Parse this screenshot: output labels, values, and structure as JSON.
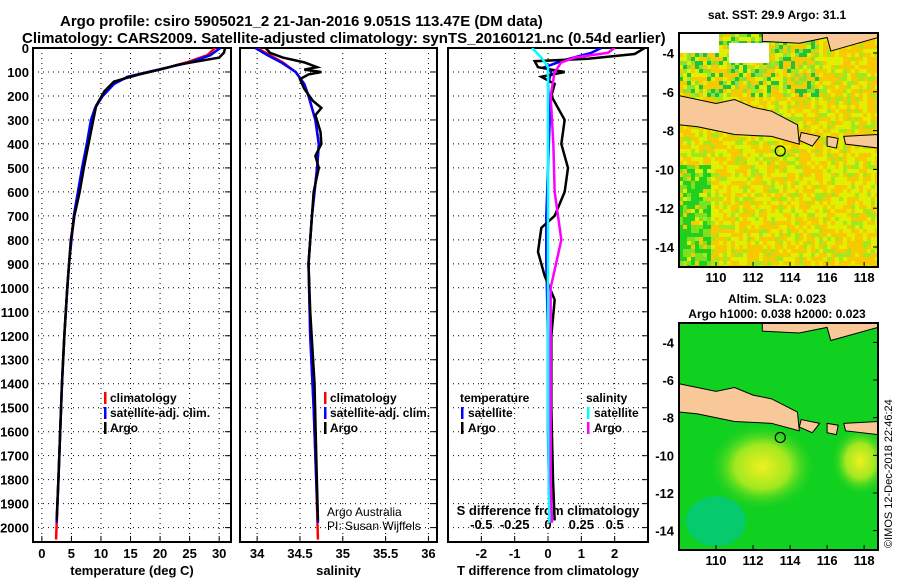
{
  "title_line1": "Argo profile: csiro 5905021_2 21-Jan-2016 9.051S 113.47E (DM data)",
  "title_line2": "Climatology: CARS2009. Satellite-adjusted climatology: synTS_20160121.nc (0.54d earlier)",
  "credit": "©IMOS 12-Dec-2018 22:46:24",
  "colors": {
    "climatology": "#ff0000",
    "satellite": "#0000ff",
    "argo": "#000000",
    "s_satellite": "#00ffff",
    "s_argo": "#ff00ff"
  },
  "chart_data": [
    {
      "type": "line",
      "name": "temperature",
      "xlabel": "temperature (deg C)",
      "ylabel": "depth",
      "xlim": [
        -1.5,
        32
      ],
      "ylim": [
        2060,
        0
      ],
      "xticks": [
        0,
        5,
        10,
        15,
        20,
        25,
        30
      ],
      "yticks": [
        0,
        100,
        200,
        300,
        400,
        500,
        600,
        700,
        800,
        900,
        1000,
        1100,
        1200,
        1300,
        1400,
        1500,
        1600,
        1700,
        1800,
        1900,
        2000
      ],
      "legend": [
        "climatology",
        "satellite-adj. clim.",
        "Argo"
      ],
      "series": [
        {
          "name": "climatology",
          "color": "#ff0000",
          "points": [
            [
              0,
              29.3
            ],
            [
              30,
              28
            ],
            [
              60,
              24.5
            ],
            [
              80,
              21.5
            ],
            [
              100,
              18
            ],
            [
              120,
              14.5
            ],
            [
              150,
              12
            ],
            [
              200,
              10.2
            ],
            [
              250,
              9
            ],
            [
              300,
              8.4
            ],
            [
              400,
              7.7
            ],
            [
              500,
              6.9
            ],
            [
              600,
              6.2
            ],
            [
              700,
              5.5
            ],
            [
              800,
              5
            ],
            [
              900,
              4.6
            ],
            [
              1000,
              4.3
            ],
            [
              1200,
              3.8
            ],
            [
              1400,
              3.4
            ],
            [
              1600,
              3.1
            ],
            [
              1800,
              2.8
            ],
            [
              2050,
              2.4
            ]
          ]
        },
        {
          "name": "satellite-adj. clim.",
          "color": "#0000ff",
          "points": [
            [
              0,
              30.2
            ],
            [
              30,
              28.5
            ],
            [
              60,
              25
            ],
            [
              80,
              21.5
            ],
            [
              100,
              18
            ],
            [
              120,
              14.5
            ],
            [
              150,
              12.2
            ],
            [
              200,
              10.3
            ],
            [
              250,
              9
            ],
            [
              300,
              8.3
            ],
            [
              400,
              7.6
            ],
            [
              500,
              6.8
            ],
            [
              600,
              6.1
            ],
            [
              700,
              5.4
            ],
            [
              800,
              5
            ],
            [
              900,
              4.6
            ],
            [
              1000,
              4.3
            ],
            [
              1200,
              3.8
            ],
            [
              1400,
              3.4
            ],
            [
              1600,
              3.1
            ],
            [
              1800,
              2.8
            ],
            [
              1980,
              2.5
            ]
          ]
        },
        {
          "name": "Argo",
          "color": "#000000",
          "points": [
            [
              0,
              31
            ],
            [
              20,
              30.8
            ],
            [
              40,
              30
            ],
            [
              55,
              26.5
            ],
            [
              70,
              23
            ],
            [
              90,
              20
            ],
            [
              110,
              16.5
            ],
            [
              140,
              12.2
            ],
            [
              180,
              10.6
            ],
            [
              240,
              9.2
            ],
            [
              300,
              8.7
            ],
            [
              400,
              7.9
            ],
            [
              500,
              7.1
            ],
            [
              600,
              6.4
            ],
            [
              700,
              5.5
            ],
            [
              800,
              4.9
            ],
            [
              900,
              4.6
            ],
            [
              1000,
              4.3
            ],
            [
              1200,
              3.8
            ],
            [
              1400,
              3.4
            ],
            [
              1600,
              3.1
            ],
            [
              1800,
              2.8
            ],
            [
              1970,
              2.5
            ]
          ]
        }
      ]
    },
    {
      "type": "line",
      "name": "salinity",
      "xlabel": "salinity",
      "xlim": [
        33.8,
        36.1
      ],
      "ylim": [
        2060,
        0
      ],
      "xticks": [
        34,
        34.5,
        35,
        35.5,
        36
      ],
      "xtick_labels": [
        "34",
        "34.5",
        "35",
        "35.5",
        "36"
      ],
      "legend": [
        "climatology",
        "satellite-adj. clim.",
        "Argo"
      ],
      "annotation": [
        "Argo Australia",
        "PI: Susan Wijffels"
      ],
      "series": [
        {
          "name": "climatology",
          "color": "#ff0000",
          "points": [
            [
              0,
              34.0
            ],
            [
              30,
              34.15
            ],
            [
              60,
              34.3
            ],
            [
              100,
              34.45
            ],
            [
              150,
              34.55
            ],
            [
              200,
              34.6
            ],
            [
              300,
              34.68
            ],
            [
              400,
              34.72
            ],
            [
              500,
              34.7
            ],
            [
              700,
              34.64
            ],
            [
              900,
              34.6
            ],
            [
              1200,
              34.62
            ],
            [
              1500,
              34.66
            ],
            [
              1800,
              34.69
            ],
            [
              2050,
              34.71
            ]
          ]
        },
        {
          "name": "satellite-adj. clim.",
          "color": "#0000ff",
          "points": [
            [
              0,
              33.98
            ],
            [
              30,
              34.12
            ],
            [
              60,
              34.28
            ],
            [
              100,
              34.45
            ],
            [
              150,
              34.55
            ],
            [
              200,
              34.6
            ],
            [
              300,
              34.68
            ],
            [
              400,
              34.72
            ],
            [
              500,
              34.7
            ],
            [
              700,
              34.64
            ],
            [
              900,
              34.6
            ],
            [
              1200,
              34.62
            ],
            [
              1500,
              34.66
            ],
            [
              1800,
              34.69
            ],
            [
              1980,
              34.71
            ]
          ]
        },
        {
          "name": "Argo",
          "color": "#000000",
          "points": [
            [
              0,
              34.1
            ],
            [
              20,
              34.15
            ],
            [
              40,
              34.3
            ],
            [
              60,
              34.55
            ],
            [
              80,
              34.7
            ],
            [
              90,
              34.55
            ],
            [
              100,
              34.75
            ],
            [
              110,
              34.6
            ],
            [
              130,
              34.5
            ],
            [
              170,
              34.55
            ],
            [
              220,
              34.65
            ],
            [
              250,
              34.75
            ],
            [
              280,
              34.68
            ],
            [
              350,
              34.74
            ],
            [
              400,
              34.75
            ],
            [
              450,
              34.68
            ],
            [
              500,
              34.72
            ],
            [
              600,
              34.66
            ],
            [
              700,
              34.64
            ],
            [
              800,
              34.62
            ],
            [
              900,
              34.6
            ],
            [
              1100,
              34.62
            ],
            [
              1400,
              34.67
            ],
            [
              1700,
              34.69
            ],
            [
              1970,
              34.71
            ]
          ]
        }
      ]
    },
    {
      "type": "line",
      "name": "difference",
      "xlabel": "T difference from climatology",
      "x2label": "S difference from climatology",
      "xlim": [
        -3,
        3
      ],
      "ylim": [
        2060,
        0
      ],
      "xticks": [
        -2,
        -1,
        0,
        1,
        2
      ],
      "x2ticks": [
        -0.5,
        -0.25,
        0,
        0.25,
        0.5
      ],
      "x2tick_labels": [
        "-0.5",
        "-0.25",
        "0",
        "0.25",
        "0.5"
      ],
      "legend_t": {
        "title": "temperature",
        "items": [
          "satellite",
          "Argo"
        ]
      },
      "legend_s": {
        "title": "salinity",
        "items": [
          "satellite",
          "Argo"
        ]
      },
      "series": [
        {
          "name": "T satellite",
          "color": "#0000ff",
          "points": [
            [
              0,
              1.6
            ],
            [
              20,
              1.3
            ],
            [
              50,
              0.5
            ],
            [
              80,
              -0.1
            ],
            [
              100,
              0.1
            ],
            [
              150,
              0
            ],
            [
              300,
              0.05
            ],
            [
              500,
              0
            ],
            [
              700,
              -0.05
            ],
            [
              900,
              -0.05
            ],
            [
              1200,
              0
            ],
            [
              1600,
              0
            ],
            [
              1980,
              0.05
            ]
          ]
        },
        {
          "name": "T Argo",
          "color": "#000000",
          "points": [
            [
              0,
              2.9
            ],
            [
              25,
              2.6
            ],
            [
              45,
              1.2
            ],
            [
              55,
              -0.4
            ],
            [
              80,
              -0.3
            ],
            [
              100,
              0.5
            ],
            [
              120,
              -0.2
            ],
            [
              150,
              0.2
            ],
            [
              200,
              0.1
            ],
            [
              300,
              0.5
            ],
            [
              400,
              0.4
            ],
            [
              500,
              0.6
            ],
            [
              600,
              0.5
            ],
            [
              700,
              0.2
            ],
            [
              750,
              -0.2
            ],
            [
              850,
              -0.3
            ],
            [
              950,
              -0.1
            ],
            [
              1050,
              0.2
            ],
            [
              1200,
              0.1
            ],
            [
              1500,
              0.1
            ],
            [
              1800,
              0.15
            ],
            [
              1970,
              0.2
            ]
          ]
        },
        {
          "name": "S satellite",
          "color": "#00ffff",
          "points": [
            [
              0,
              -0.12
            ],
            [
              40,
              -0.05
            ],
            [
              80,
              0
            ],
            [
              300,
              0
            ],
            [
              800,
              0
            ],
            [
              1500,
              0
            ],
            [
              1980,
              0.01
            ]
          ]
        },
        {
          "name": "S Argo",
          "color": "#ff00ff",
          "points": [
            [
              0,
              0.5
            ],
            [
              20,
              0.45
            ],
            [
              40,
              0.2
            ],
            [
              60,
              0.1
            ],
            [
              100,
              0.05
            ],
            [
              200,
              0.02
            ],
            [
              400,
              0.04
            ],
            [
              600,
              0.05
            ],
            [
              800,
              0.1
            ],
            [
              1000,
              0.02
            ],
            [
              1400,
              0.02
            ],
            [
              1800,
              0.02
            ],
            [
              1980,
              0.03
            ]
          ]
        }
      ]
    }
  ],
  "map_sst": {
    "title": "sat. SST: 29.9 Argo: 31.1",
    "lon_ticks": [
      110,
      112,
      114,
      116,
      118
    ],
    "lat_ticks": [
      -4,
      -6,
      -8,
      -10,
      -12,
      -14
    ],
    "lonlim": [
      108,
      118.75
    ],
    "latlim": [
      -15.03,
      -2.97
    ],
    "argo_position": [
      113.47,
      -9.051
    ]
  },
  "map_sla": {
    "title_line1": "Altim. SLA: 0.023",
    "title_line2": "Argo h1000: 0.038 h2000: 0.023",
    "lon_ticks": [
      110,
      112,
      114,
      116,
      118
    ],
    "lat_ticks": [
      -4,
      -6,
      -8,
      -10,
      -12,
      -14
    ],
    "lonlim": [
      108,
      118.75
    ],
    "latlim": [
      -15.03,
      -2.97
    ],
    "argo_position": [
      113.47,
      -9.051
    ]
  }
}
